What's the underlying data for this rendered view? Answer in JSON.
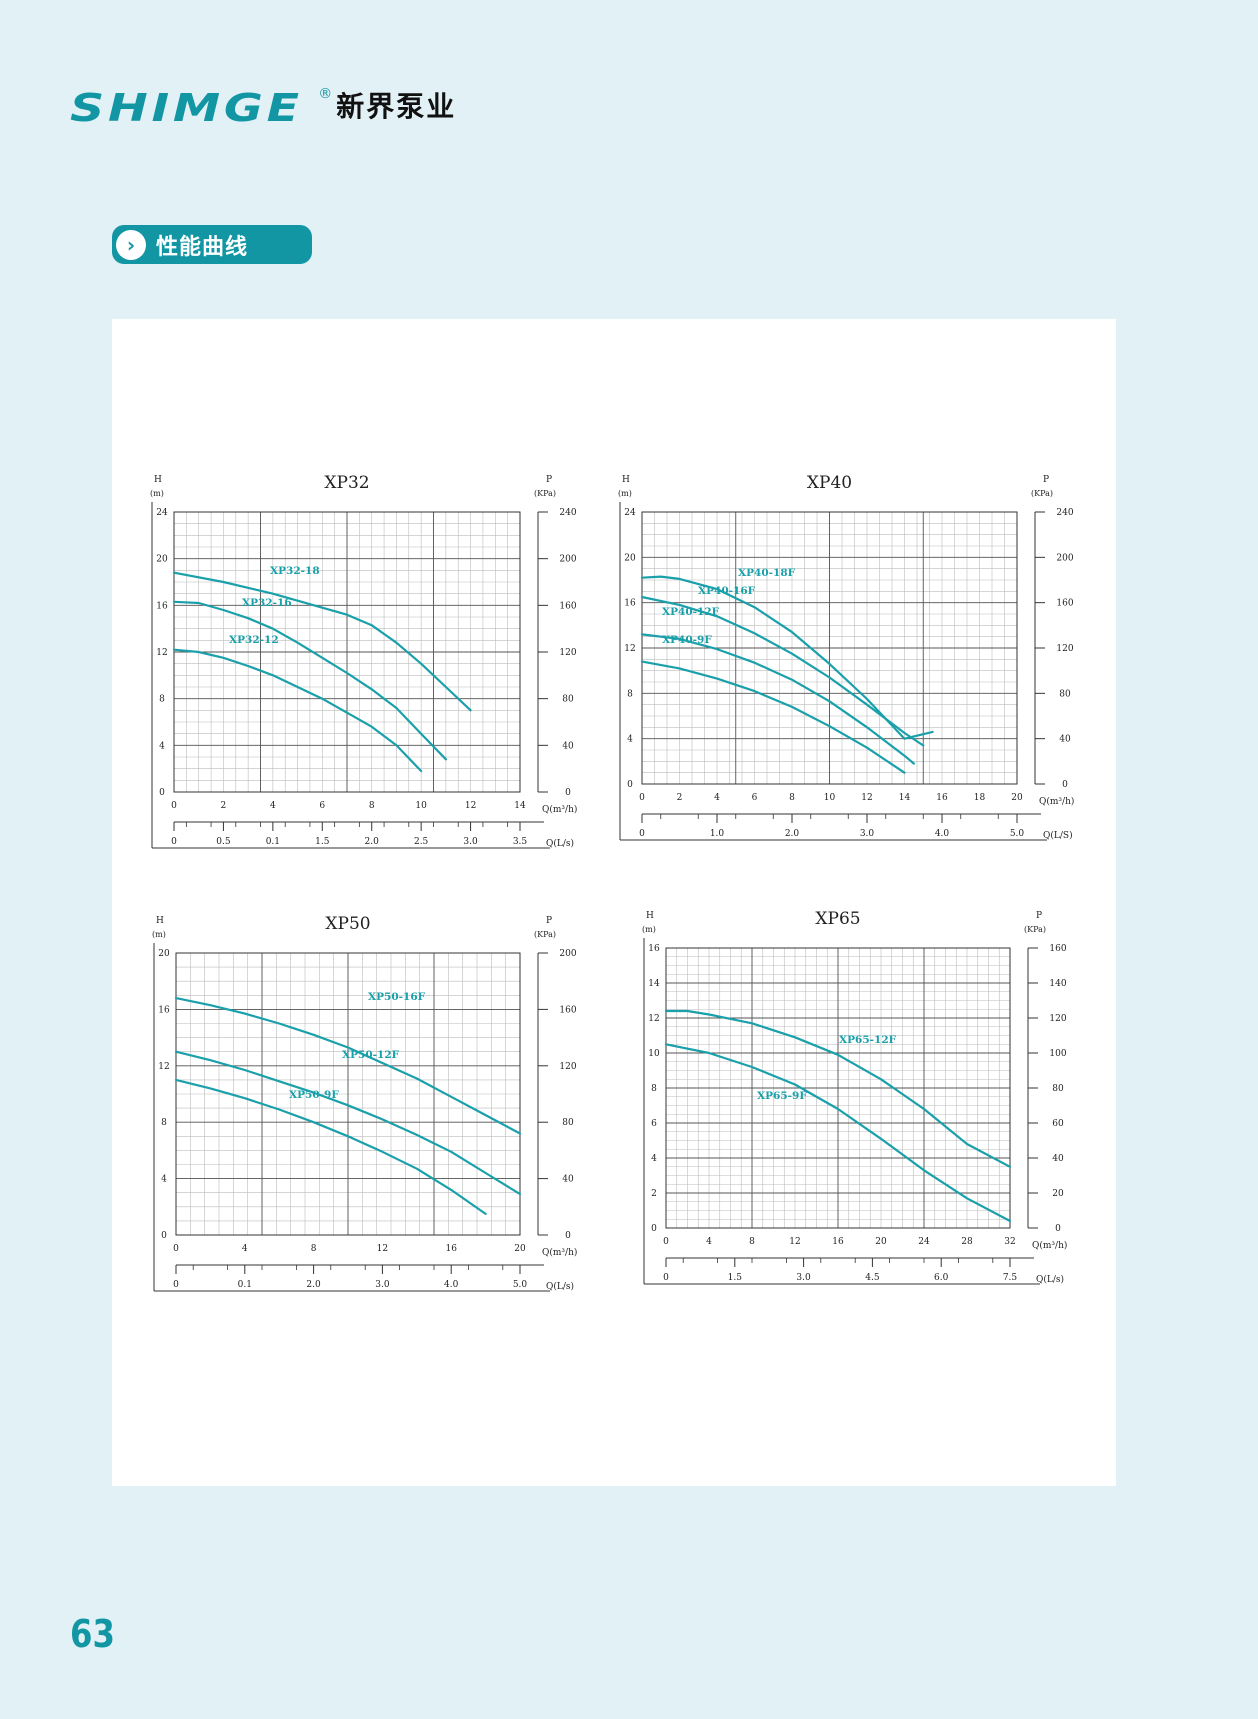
{
  "header": {
    "brand_en": "SHIMGE",
    "registered_mark": "®",
    "brand_cn": "新界泵业"
  },
  "section": {
    "icon": "chevron-right-icon",
    "title": "性能曲线"
  },
  "page_number": "63",
  "colors": {
    "accent": "#1296a4",
    "curve": "#1aa0aa",
    "grid": "#9a9a9a",
    "background": "#e2f1f5"
  },
  "chart_data": [
    {
      "type": "line",
      "title": "XP32",
      "y_label_top": "H",
      "y_label_unit": "(m)",
      "p_label_top": "P",
      "p_label_unit": "(KPa)",
      "xlabel": "Q(m³/h)",
      "x2label": "Q(L/s)",
      "xlim": [
        0,
        14
      ],
      "ylim": [
        0,
        24
      ],
      "plim": [
        0,
        240
      ],
      "x_ticks": [
        "0",
        "2",
        "4",
        "6",
        "8",
        "10",
        "12",
        "14"
      ],
      "y_ticks": [
        "0",
        "4",
        "8",
        "12",
        "16",
        "20",
        "24"
      ],
      "p_ticks": [
        "0",
        "40",
        "80",
        "120",
        "160",
        "200",
        "240"
      ],
      "x2_ticks": [
        "0",
        "0.5",
        "0.1",
        "1.5",
        "2.0",
        "2.5",
        "3.0",
        "3.5"
      ],
      "series": [
        {
          "name": "XP32-18",
          "x": [
            0,
            2,
            4,
            6,
            7,
            8,
            9,
            10,
            11,
            12
          ],
          "y": [
            18.8,
            18,
            17,
            15.8,
            15.2,
            14.3,
            12.8,
            11,
            9,
            7
          ]
        },
        {
          "name": "XP32-16",
          "x": [
            0,
            1,
            2,
            3,
            4,
            5,
            6,
            7,
            8,
            9,
            10,
            11
          ],
          "y": [
            16.3,
            16.2,
            15.6,
            14.9,
            14,
            12.8,
            11.5,
            10.2,
            8.8,
            7.2,
            5,
            2.8
          ]
        },
        {
          "name": "XP32-12",
          "x": [
            0,
            1,
            2,
            3,
            4,
            5,
            6,
            7,
            8,
            9,
            10
          ],
          "y": [
            12.2,
            12,
            11.5,
            10.8,
            10,
            9,
            8,
            6.8,
            5.6,
            4,
            1.8
          ]
        }
      ]
    },
    {
      "type": "line",
      "title": "XP40",
      "y_label_top": "H",
      "y_label_unit": "(m)",
      "p_label_top": "P",
      "p_label_unit": "(KPa)",
      "xlabel": "Q(m³/h)",
      "x2label": "Q(L/S)",
      "xlim": [
        0,
        20
      ],
      "ylim": [
        0,
        24
      ],
      "plim": [
        0,
        240
      ],
      "x_ticks": [
        "0",
        "2",
        "4",
        "6",
        "8",
        "10",
        "12",
        "14",
        "16",
        "18",
        "20"
      ],
      "y_ticks": [
        "0",
        "4",
        "8",
        "12",
        "16",
        "20",
        "24"
      ],
      "p_ticks": [
        "0",
        "40",
        "80",
        "120",
        "160",
        "200",
        "240"
      ],
      "x2_ticks": [
        "0",
        "1.0",
        "2.0",
        "3.0",
        "4.0",
        "5.0"
      ],
      "series": [
        {
          "name": "XP40-18F",
          "x": [
            0,
            1,
            2,
            4,
            6,
            8,
            10,
            12,
            14,
            15.5
          ],
          "y": [
            18.2,
            18.3,
            18.1,
            17.2,
            15.6,
            13.4,
            10.6,
            7.5,
            4,
            4.6
          ]
        },
        {
          "name": "XP40-16F",
          "x": [
            0,
            2,
            4,
            6,
            8,
            10,
            12,
            14,
            15
          ],
          "y": [
            16.5,
            15.8,
            14.8,
            13.3,
            11.5,
            9.4,
            7,
            4.5,
            3.4
          ]
        },
        {
          "name": "XP40-12F",
          "x": [
            0,
            2,
            4,
            6,
            8,
            10,
            12,
            14,
            14.5
          ],
          "y": [
            13.2,
            12.8,
            11.9,
            10.7,
            9.2,
            7.3,
            5,
            2.5,
            1.8
          ]
        },
        {
          "name": "XP40-9F",
          "x": [
            0,
            2,
            4,
            6,
            8,
            10,
            12,
            14
          ],
          "y": [
            10.8,
            10.2,
            9.3,
            8.2,
            6.8,
            5.1,
            3.2,
            1
          ]
        }
      ]
    },
    {
      "type": "line",
      "title": "XP50",
      "y_label_top": "H",
      "y_label_unit": "(m)",
      "p_label_top": "P",
      "p_label_unit": "(KPa)",
      "xlabel": "Q(m³/h)",
      "x2label": "Q(L/s)",
      "xlim": [
        0,
        20
      ],
      "ylim": [
        0,
        20
      ],
      "plim": [
        0,
        200
      ],
      "x_ticks": [
        "0",
        "4",
        "8",
        "12",
        "16",
        "20"
      ],
      "y_ticks": [
        "0",
        "4",
        "8",
        "12",
        "16",
        "20"
      ],
      "p_ticks": [
        "0",
        "40",
        "80",
        "120",
        "160",
        "200"
      ],
      "x2_ticks": [
        "0",
        "0.1",
        "2.0",
        "3.0",
        "4.0",
        "5.0"
      ],
      "series": [
        {
          "name": "XP50-16F",
          "x": [
            0,
            2,
            4,
            6,
            8,
            10,
            12,
            14,
            16,
            18,
            20
          ],
          "y": [
            16.8,
            16.3,
            15.7,
            15,
            14.2,
            13.3,
            12.2,
            11.1,
            9.8,
            8.5,
            7.2
          ]
        },
        {
          "name": "XP50-12F",
          "x": [
            0,
            2,
            4,
            6,
            8,
            10,
            12,
            14,
            16,
            18,
            20
          ],
          "y": [
            13,
            12.4,
            11.7,
            10.9,
            10.1,
            9.2,
            8.2,
            7.1,
            5.9,
            4.4,
            2.9
          ]
        },
        {
          "name": "XP50-9F",
          "x": [
            0,
            2,
            4,
            6,
            8,
            10,
            12,
            14,
            16,
            18
          ],
          "y": [
            11,
            10.4,
            9.7,
            8.9,
            8,
            7,
            5.9,
            4.7,
            3.2,
            1.5
          ]
        }
      ]
    },
    {
      "type": "line",
      "title": "XP65",
      "y_label_top": "H",
      "y_label_unit": "(m)",
      "p_label_top": "P",
      "p_label_unit": "(KPa)",
      "xlabel": "Q(m³/h)",
      "x2label": "Q(L/s)",
      "xlim": [
        0,
        32
      ],
      "ylim": [
        0,
        16
      ],
      "plim": [
        0,
        160
      ],
      "x_ticks": [
        "0",
        "4",
        "8",
        "12",
        "16",
        "20",
        "24",
        "28",
        "32"
      ],
      "y_ticks": [
        "0",
        "2",
        "4",
        "6",
        "8",
        "10",
        "12",
        "14",
        "16"
      ],
      "p_ticks": [
        "0",
        "20",
        "40",
        "60",
        "80",
        "100",
        "120",
        "140",
        "160"
      ],
      "x2_ticks": [
        "0",
        "1.5",
        "3.0",
        "4.5",
        "6.0",
        "7.5"
      ],
      "series": [
        {
          "name": "XP65-12F",
          "x": [
            0,
            2,
            4,
            8,
            12,
            16,
            20,
            24,
            28,
            32
          ],
          "y": [
            12.4,
            12.4,
            12.2,
            11.7,
            10.9,
            9.9,
            8.5,
            6.8,
            4.8,
            3.5
          ]
        },
        {
          "name": "XP65-9F",
          "x": [
            0,
            4,
            8,
            12,
            16,
            20,
            24,
            28,
            32
          ],
          "y": [
            10.5,
            10,
            9.2,
            8.2,
            6.8,
            5.1,
            3.3,
            1.7,
            0.4
          ]
        }
      ]
    }
  ]
}
